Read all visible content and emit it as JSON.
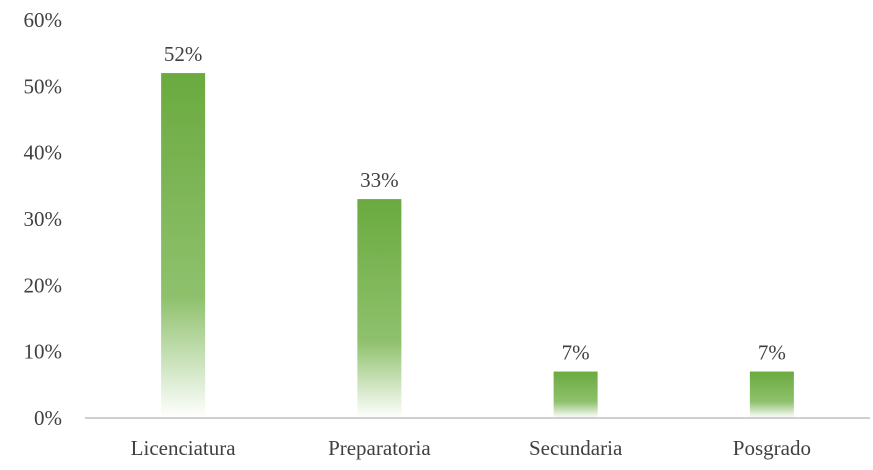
{
  "chart_data": {
    "type": "bar",
    "categories": [
      "Licenciatura",
      "Preparatoria",
      "Secundaria",
      "Posgrado"
    ],
    "values": [
      52,
      33,
      7,
      7
    ],
    "data_labels": [
      "52%",
      "33%",
      "7%",
      "7%"
    ],
    "yticks": [
      "0%",
      "10%",
      "20%",
      "30%",
      "40%",
      "50%",
      "60%"
    ],
    "ylim": [
      0,
      60
    ],
    "unit": "%",
    "title": "",
    "xlabel": "",
    "ylabel": "",
    "grid": false,
    "legend": "none",
    "bar_color_top": "#6aaa3f",
    "bar_color_bottom": "#ffffff",
    "axis_color": "#bfbfbf",
    "text_color": "#404040"
  }
}
